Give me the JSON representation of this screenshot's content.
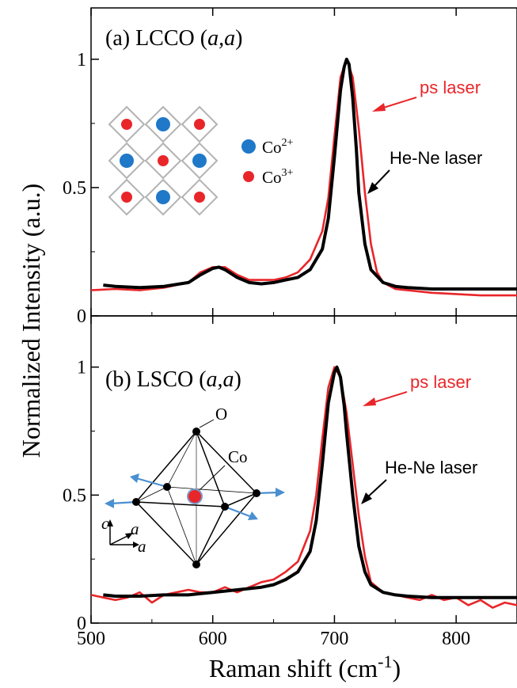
{
  "figure": {
    "ylabel": "Normalized Intensity (a.u.)",
    "xlabel_main": "Raman shift (cm",
    "xlabel_sup": "-1",
    "xlabel_close": ")",
    "colors": {
      "ps_laser": "#e8262a",
      "hene_laser": "#000000",
      "co2": "#1f78c8",
      "co3": "#e8262a"
    }
  },
  "chart_data": [
    {
      "type": "line",
      "panel": "a",
      "title_prefix": "(a) LCCO  (",
      "title_italic": "a,a",
      "title_suffix": ")",
      "xlim": [
        500,
        850
      ],
      "ylim": [
        0,
        1.2
      ],
      "xticks": [
        "500",
        "600",
        "700",
        "800"
      ],
      "yticks": [
        "0",
        "0.5",
        "1"
      ],
      "yticks_values": [
        0,
        0.5,
        1
      ],
      "series": [
        {
          "name": "ps laser",
          "color": "#e8262a",
          "x": [
            500,
            520,
            540,
            560,
            580,
            590,
            600,
            610,
            620,
            630,
            640,
            650,
            660,
            670,
            680,
            690,
            695,
            700,
            705,
            710,
            715,
            720,
            725,
            730,
            735,
            740,
            750,
            760,
            780,
            800,
            820,
            850
          ],
          "y": [
            0.1,
            0.105,
            0.1,
            0.11,
            0.13,
            0.17,
            0.19,
            0.19,
            0.16,
            0.14,
            0.14,
            0.14,
            0.15,
            0.17,
            0.22,
            0.33,
            0.46,
            0.7,
            0.93,
            1.0,
            0.93,
            0.73,
            0.48,
            0.28,
            0.17,
            0.13,
            0.105,
            0.1,
            0.09,
            0.085,
            0.08,
            0.08
          ]
        },
        {
          "name": "He-Ne laser",
          "color": "#000000",
          "x": [
            510,
            520,
            540,
            560,
            580,
            590,
            600,
            605,
            610,
            620,
            630,
            640,
            650,
            660,
            670,
            680,
            690,
            695,
            700,
            705,
            708,
            710,
            712,
            715,
            718,
            720,
            725,
            730,
            740,
            750,
            760,
            780,
            800,
            820,
            850
          ],
          "y": [
            0.12,
            0.115,
            0.11,
            0.115,
            0.13,
            0.16,
            0.185,
            0.19,
            0.18,
            0.15,
            0.13,
            0.125,
            0.13,
            0.14,
            0.15,
            0.18,
            0.26,
            0.38,
            0.62,
            0.88,
            0.97,
            1.0,
            0.98,
            0.85,
            0.65,
            0.48,
            0.28,
            0.18,
            0.13,
            0.115,
            0.11,
            0.105,
            0.105,
            0.105,
            0.105
          ]
        }
      ],
      "annotations": {
        "ps_label": "ps laser",
        "hene_label": "He-Ne laser"
      },
      "inset": {
        "co2_base": "Co",
        "co2_sup": "2+",
        "co3_base": "Co",
        "co3_sup": "3+"
      }
    },
    {
      "type": "line",
      "panel": "b",
      "title_prefix": "(b) LSCO  (",
      "title_italic": "a,a",
      "title_suffix": ")",
      "xlim": [
        500,
        850
      ],
      "ylim": [
        0,
        1.2
      ],
      "xticks": [
        "500",
        "600",
        "700",
        "800"
      ],
      "yticks": [
        "0",
        "0.5",
        "1"
      ],
      "yticks_values": [
        0,
        0.5,
        1
      ],
      "series": [
        {
          "name": "ps laser",
          "color": "#e8262a",
          "x": [
            500,
            510,
            520,
            530,
            540,
            550,
            560,
            570,
            580,
            590,
            600,
            610,
            620,
            630,
            640,
            650,
            660,
            670,
            680,
            685,
            690,
            695,
            700,
            705,
            710,
            715,
            720,
            725,
            730,
            740,
            750,
            760,
            770,
            780,
            790,
            800,
            810,
            820,
            830,
            840,
            850
          ],
          "y": [
            0.11,
            0.1,
            0.09,
            0.1,
            0.12,
            0.08,
            0.11,
            0.12,
            0.13,
            0.12,
            0.12,
            0.14,
            0.12,
            0.14,
            0.16,
            0.17,
            0.2,
            0.24,
            0.36,
            0.5,
            0.72,
            0.92,
            1.0,
            0.96,
            0.82,
            0.62,
            0.42,
            0.26,
            0.16,
            0.12,
            0.11,
            0.1,
            0.09,
            0.11,
            0.09,
            0.1,
            0.07,
            0.09,
            0.06,
            0.08,
            0.07
          ]
        },
        {
          "name": "He-Ne laser",
          "color": "#000000",
          "x": [
            510,
            520,
            540,
            560,
            580,
            600,
            620,
            640,
            650,
            660,
            670,
            680,
            685,
            690,
            695,
            700,
            702,
            705,
            708,
            710,
            715,
            720,
            725,
            730,
            740,
            750,
            760,
            780,
            800,
            820,
            850
          ],
          "y": [
            0.11,
            0.105,
            0.105,
            0.11,
            0.11,
            0.12,
            0.13,
            0.14,
            0.15,
            0.17,
            0.2,
            0.28,
            0.4,
            0.62,
            0.86,
            0.98,
            1.0,
            0.96,
            0.85,
            0.74,
            0.5,
            0.3,
            0.2,
            0.15,
            0.12,
            0.11,
            0.105,
            0.1,
            0.1,
            0.1,
            0.1
          ]
        }
      ],
      "annotations": {
        "ps_label": "ps laser",
        "hene_label": "He-Ne laser"
      },
      "inset": {
        "o_label": "O",
        "co_label": "Co",
        "axis_c": "c",
        "axis_a1": "a",
        "axis_a2": "a"
      }
    }
  ]
}
